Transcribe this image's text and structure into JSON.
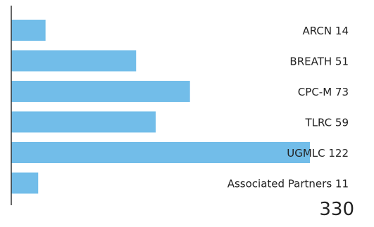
{
  "colors": {
    "bar": "#72bde9",
    "axis": "#333333",
    "text": "#222222"
  },
  "chart_data": {
    "type": "bar",
    "orientation": "horizontal",
    "title": "",
    "xlabel": "",
    "ylabel": "",
    "categories": [
      "ARCN",
      "BREATH",
      "CPC-M",
      "TLRC",
      "UGMLC",
      "Associated Partners"
    ],
    "values": [
      14,
      51,
      73,
      59,
      122,
      11
    ],
    "xlim": [
      0,
      122
    ],
    "grid": false,
    "legend": "none"
  },
  "total": "330"
}
